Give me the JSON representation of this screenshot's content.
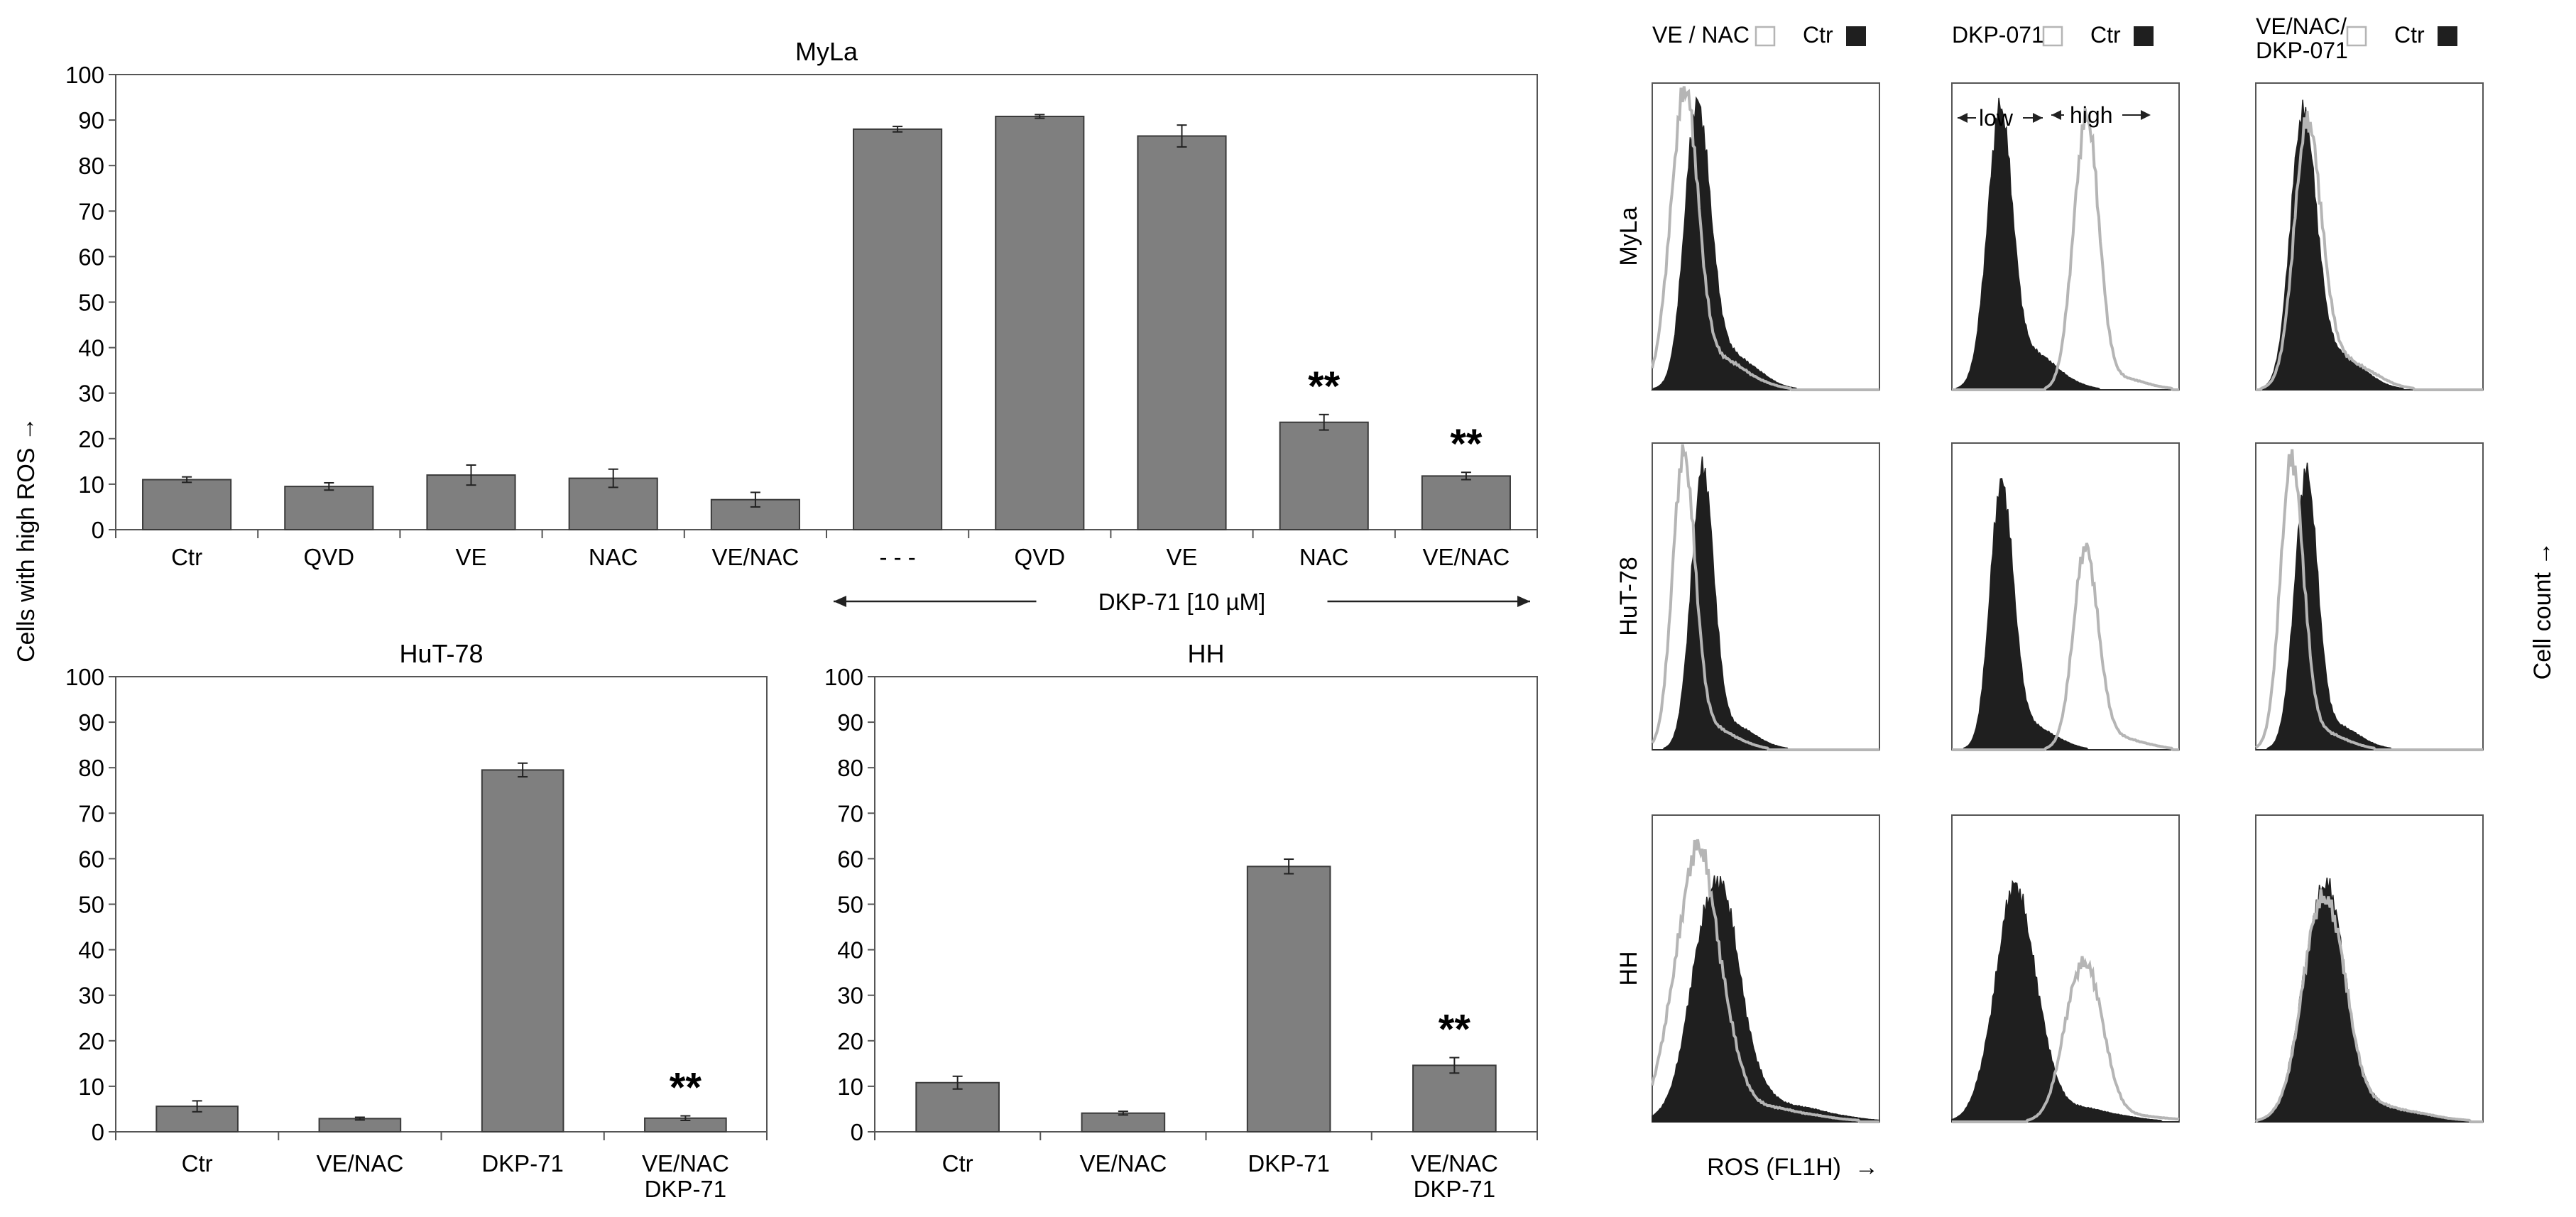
{
  "figure": {
    "y_axis_label": "Cells with high ROS →",
    "right_axis_label": "Cell count →",
    "bottom_axis_label": "ROS (FL1H)  →"
  },
  "colors": {
    "bar": "#7f7f7f",
    "bar_stroke": "#3a3a3a",
    "histogram_fill": "#1f1f1f",
    "histogram_line": "#b5b5b5",
    "axis": "#555555"
  },
  "chart_data": [
    {
      "type": "bar",
      "title": "MyLa",
      "categories": [
        "Ctr",
        "QVD",
        "VE",
        "NAC",
        "VE/NAC",
        "- - -",
        "QVD",
        "VE",
        "NAC",
        "VE/NAC"
      ],
      "values": [
        11,
        9.5,
        12,
        11.3,
        6.6,
        88,
        90.8,
        86.5,
        23.6,
        11.8
      ],
      "errors": [
        0.6,
        0.8,
        2.2,
        2.0,
        1.6,
        0.6,
        0.4,
        2.4,
        1.7,
        0.8
      ],
      "annotations": [
        "",
        "",
        "",
        "",
        "",
        "",
        "",
        "",
        "**",
        "**"
      ],
      "group_label": "DKP-71 [10 µM]",
      "ylabel": "Cells with high ROS →",
      "ylim": [
        0,
        100
      ],
      "yticks": [
        "0",
        "10",
        "20",
        "30",
        "40",
        "50",
        "60",
        "70",
        "80",
        "90",
        "100"
      ]
    },
    {
      "type": "bar",
      "title": "HuT-78",
      "categories": [
        [
          "Ctr"
        ],
        [
          "VE/NAC"
        ],
        [
          "DKP-71"
        ],
        [
          "VE/NAC",
          "DKP-71"
        ]
      ],
      "values": [
        5.6,
        2.9,
        79.5,
        3.0
      ],
      "errors": [
        1.2,
        0.3,
        1.5,
        0.5
      ],
      "annotations": [
        "",
        "",
        "",
        "**"
      ],
      "ylim": [
        0,
        100
      ],
      "yticks": [
        "0",
        "10",
        "20",
        "30",
        "40",
        "50",
        "60",
        "70",
        "80",
        "90",
        "100"
      ]
    },
    {
      "type": "bar",
      "title": "HH",
      "categories": [
        [
          "Ctr"
        ],
        [
          "VE/NAC"
        ],
        [
          "DKP-71"
        ],
        [
          "VE/NAC",
          "DKP-71"
        ]
      ],
      "values": [
        10.8,
        4.1,
        58.3,
        14.6
      ],
      "errors": [
        1.4,
        0.4,
        1.6,
        1.7
      ],
      "annotations": [
        "",
        "",
        "",
        "**"
      ],
      "ylim": [
        0,
        100
      ],
      "yticks": [
        "0",
        "10",
        "20",
        "30",
        "40",
        "50",
        "60",
        "70",
        "80",
        "90",
        "100"
      ]
    },
    {
      "type": "histogram-grid",
      "rows": [
        "MyLa",
        "HuT-78",
        "HH"
      ],
      "columns": [
        {
          "legend_open": [
            "VE / NAC"
          ],
          "legend_filled": "Ctr"
        },
        {
          "legend_open": [
            "DKP-071"
          ],
          "legend_filled": "Ctr"
        },
        {
          "legend_open": [
            "VE/NAC/",
            "DKP-071"
          ],
          "legend_filled": "Ctr"
        }
      ],
      "gate_labels": {
        "low": "low",
        "high": "high"
      },
      "xlabel": "ROS (FL1H)  →",
      "ylabel": "Cell count →",
      "series_note": "filled = Ctr, open = treatment",
      "panels": [
        {
          "row": "MyLa",
          "col": 0,
          "filled": {
            "center": 0.2,
            "width": 0.055,
            "height": 0.88,
            "tail": 0.12
          },
          "open": {
            "center": 0.14,
            "width": 0.06,
            "height": 0.92,
            "tail": 0.1
          }
        },
        {
          "row": "MyLa",
          "col": 1,
          "filled": {
            "center": 0.21,
            "width": 0.055,
            "height": 0.84,
            "tail": 0.12
          },
          "open": {
            "center": 0.59,
            "width": 0.055,
            "height": 0.87,
            "tail": 0.04
          }
        },
        {
          "row": "MyLa",
          "col": 2,
          "filled": {
            "center": 0.21,
            "width": 0.055,
            "height": 0.85,
            "tail": 0.12
          },
          "open": {
            "center": 0.23,
            "width": 0.06,
            "height": 0.82,
            "tail": 0.1
          }
        },
        {
          "row": "HuT-78",
          "col": 0,
          "filled": {
            "center": 0.22,
            "width": 0.05,
            "height": 0.86,
            "tail": 0.08
          },
          "open": {
            "center": 0.14,
            "width": 0.05,
            "height": 0.92,
            "tail": 0.07
          }
        },
        {
          "row": "HuT-78",
          "col": 1,
          "filled": {
            "center": 0.22,
            "width": 0.05,
            "height": 0.84,
            "tail": 0.08
          },
          "open": {
            "center": 0.59,
            "width": 0.055,
            "height": 0.63,
            "tail": 0.04
          }
        },
        {
          "row": "HuT-78",
          "col": 2,
          "filled": {
            "center": 0.22,
            "width": 0.05,
            "height": 0.85,
            "tail": 0.08
          },
          "open": {
            "center": 0.16,
            "width": 0.05,
            "height": 0.92,
            "tail": 0.06
          }
        },
        {
          "row": "HH",
          "col": 0,
          "filled": {
            "center": 0.28,
            "width": 0.1,
            "height": 0.76,
            "tail": 0.06
          },
          "open": {
            "center": 0.2,
            "width": 0.1,
            "height": 0.85,
            "tail": 0.05
          }
        },
        {
          "row": "HH",
          "col": 1,
          "filled": {
            "center": 0.28,
            "width": 0.09,
            "height": 0.73,
            "tail": 0.05
          },
          "open": {
            "center": 0.58,
            "width": 0.08,
            "height": 0.52,
            "tail": 0.02
          }
        },
        {
          "row": "HH",
          "col": 2,
          "filled": {
            "center": 0.3,
            "width": 0.09,
            "height": 0.75,
            "tail": 0.05
          },
          "open": {
            "center": 0.3,
            "width": 0.09,
            "height": 0.72,
            "tail": 0.05
          }
        }
      ]
    }
  ]
}
